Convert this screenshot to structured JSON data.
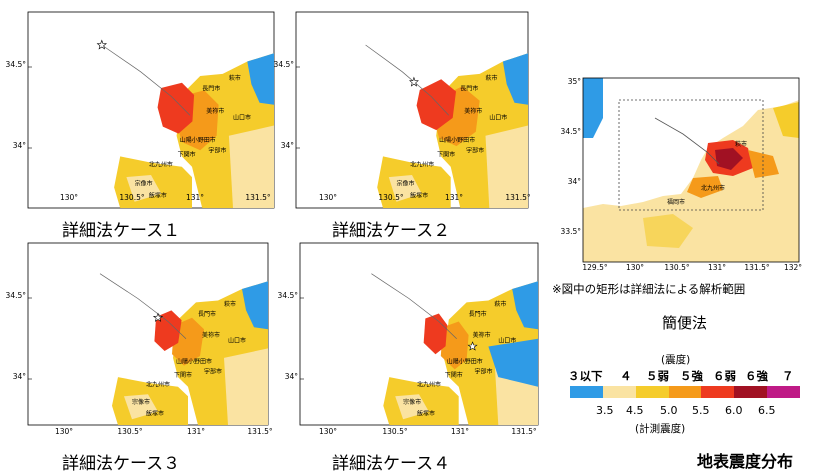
{
  "panels": [
    {
      "caption": "詳細法ケース１",
      "lat_ticks": [
        "34.5°",
        "34°"
      ],
      "lon_ticks": [
        "130°",
        "130.5°",
        "131°",
        "131.5°"
      ],
      "cities": [
        "萩市",
        "長門市",
        "美祢市",
        "山口市",
        "山陽小野田市",
        "宇部市",
        "下関市",
        "北九州市",
        "宗像市",
        "飯塚市"
      ],
      "epicenter": "star",
      "intensity_pattern": "case1"
    },
    {
      "caption": "詳細法ケース２",
      "lat_ticks": [
        "34.5°",
        "34°"
      ],
      "lon_ticks": [
        "130°",
        "130.5°",
        "131°",
        "131.5°"
      ],
      "cities": [
        "萩市",
        "長門市",
        "美祢市",
        "山口市",
        "山陽小野田市",
        "宇部市",
        "下関市",
        "北九州市",
        "宗像市",
        "飯塚市"
      ],
      "epicenter": "star",
      "intensity_pattern": "case2"
    },
    {
      "caption": "詳細法ケース３",
      "lat_ticks": [
        "34.5°",
        "34°"
      ],
      "lon_ticks": [
        "130°",
        "130.5°",
        "131°",
        "131.5°"
      ],
      "cities": [
        "萩市",
        "長門市",
        "美祢市",
        "山口市",
        "山陽小野田市",
        "宇部市",
        "下関市",
        "北九州市",
        "宗像市",
        "飯塚市"
      ],
      "epicenter": "star",
      "intensity_pattern": "case3"
    },
    {
      "caption": "詳細法ケース４",
      "lat_ticks": [
        "34.5°",
        "34°"
      ],
      "lon_ticks": [
        "130°",
        "130.5°",
        "131°",
        "131.5°"
      ],
      "cities": [
        "萩市",
        "長門市",
        "美祢市",
        "山口市",
        "山陽小野田市",
        "宇部市",
        "下関市",
        "北九州市",
        "宗像市",
        "飯塚市"
      ],
      "epicenter": "star",
      "intensity_pattern": "case4"
    }
  ],
  "simple_map": {
    "lat_ticks": [
      "35°",
      "34.5°",
      "34°",
      "33.5°"
    ],
    "lon_ticks": [
      "129.5°",
      "130°",
      "130.5°",
      "131°",
      "131.5°",
      "132°"
    ],
    "cities": [
      "萩市",
      "北九州市",
      "福岡市"
    ],
    "note": "※図中の矩形は詳細法による解析範囲",
    "caption": "簡便法"
  },
  "legend": {
    "title_top": "(震度)",
    "levels": [
      "３以下",
      "４",
      "５弱",
      "５強",
      "６弱",
      "６強",
      "７"
    ],
    "numbers": [
      "3.5",
      "4.5",
      "5.0",
      "5.5",
      "6.0",
      "6.5"
    ],
    "title_bottom": "(計測震度)",
    "colors": [
      "#2f9be6",
      "#fae3a2",
      "#f5cc2b",
      "#f59a1a",
      "#ee3a1f",
      "#a11123",
      "#bf1a86"
    ]
  },
  "main_title": "地表震度分布"
}
